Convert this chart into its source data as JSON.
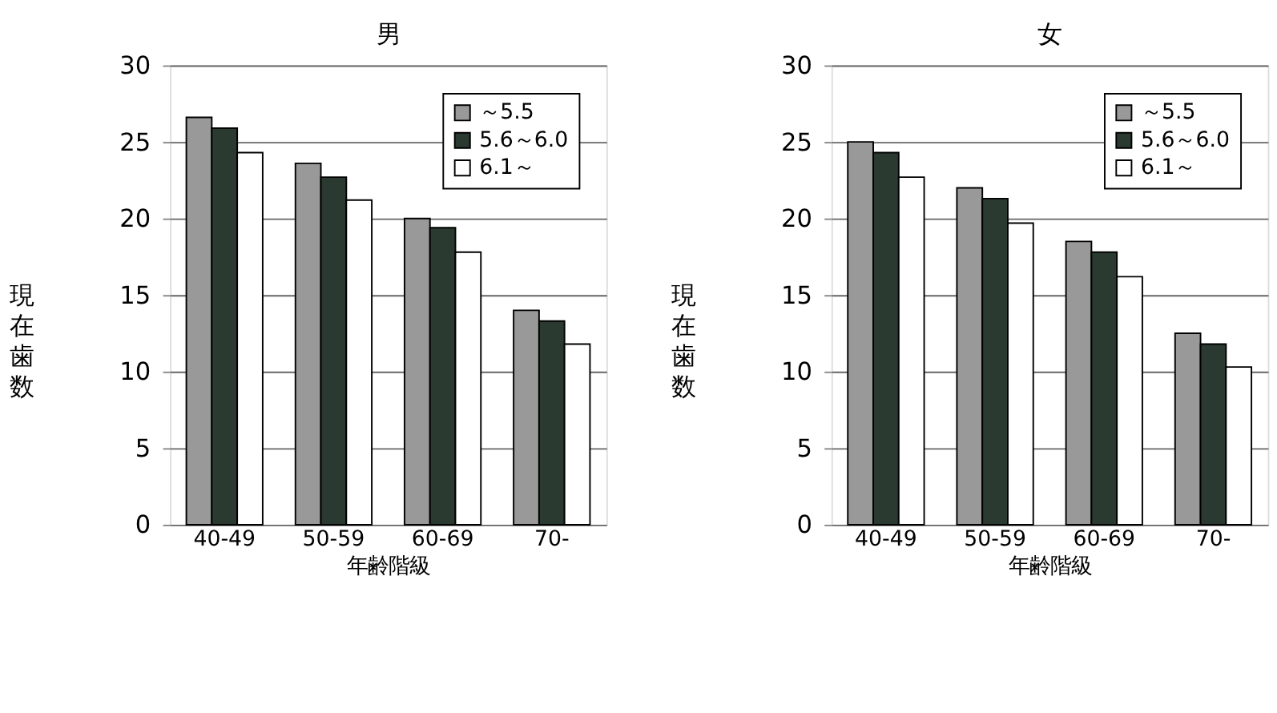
{
  "chart_data": [
    {
      "type": "bar",
      "title": "男",
      "xlabel": "年齢階級",
      "ylabel": "現在歯数",
      "categories": [
        "40-49",
        "50-59",
        "60-69",
        "70-"
      ],
      "series": [
        {
          "name": "～5.5",
          "color": "#999999",
          "values": [
            26.6,
            23.6,
            20.0,
            14.0
          ]
        },
        {
          "name": "5.6～6.0",
          "color": "#2a3a30",
          "values": [
            25.9,
            22.7,
            19.4,
            13.3
          ]
        },
        {
          "name": "6.1～",
          "color": "#ffffff",
          "values": [
            24.3,
            21.2,
            17.8,
            11.8
          ]
        }
      ],
      "ylim": [
        0,
        30
      ],
      "yticks": [
        0,
        5,
        10,
        15,
        20,
        25,
        30
      ],
      "grid": "y",
      "legend": "top right"
    },
    {
      "type": "bar",
      "title": "女",
      "xlabel": "年齢階級",
      "ylabel": "現在歯数",
      "categories": [
        "40-49",
        "50-59",
        "60-69",
        "70-"
      ],
      "series": [
        {
          "name": "～5.5",
          "color": "#999999",
          "values": [
            25.0,
            22.0,
            18.5,
            12.5
          ]
        },
        {
          "name": "5.6～6.0",
          "color": "#2a3a30",
          "values": [
            24.3,
            21.3,
            17.8,
            11.8
          ]
        },
        {
          "name": "6.1～",
          "color": "#ffffff",
          "values": [
            22.7,
            19.7,
            16.2,
            10.3
          ]
        }
      ],
      "ylim": [
        0,
        30
      ],
      "yticks": [
        0,
        5,
        10,
        15,
        20,
        25,
        30
      ],
      "grid": "y",
      "legend": "top right"
    }
  ]
}
